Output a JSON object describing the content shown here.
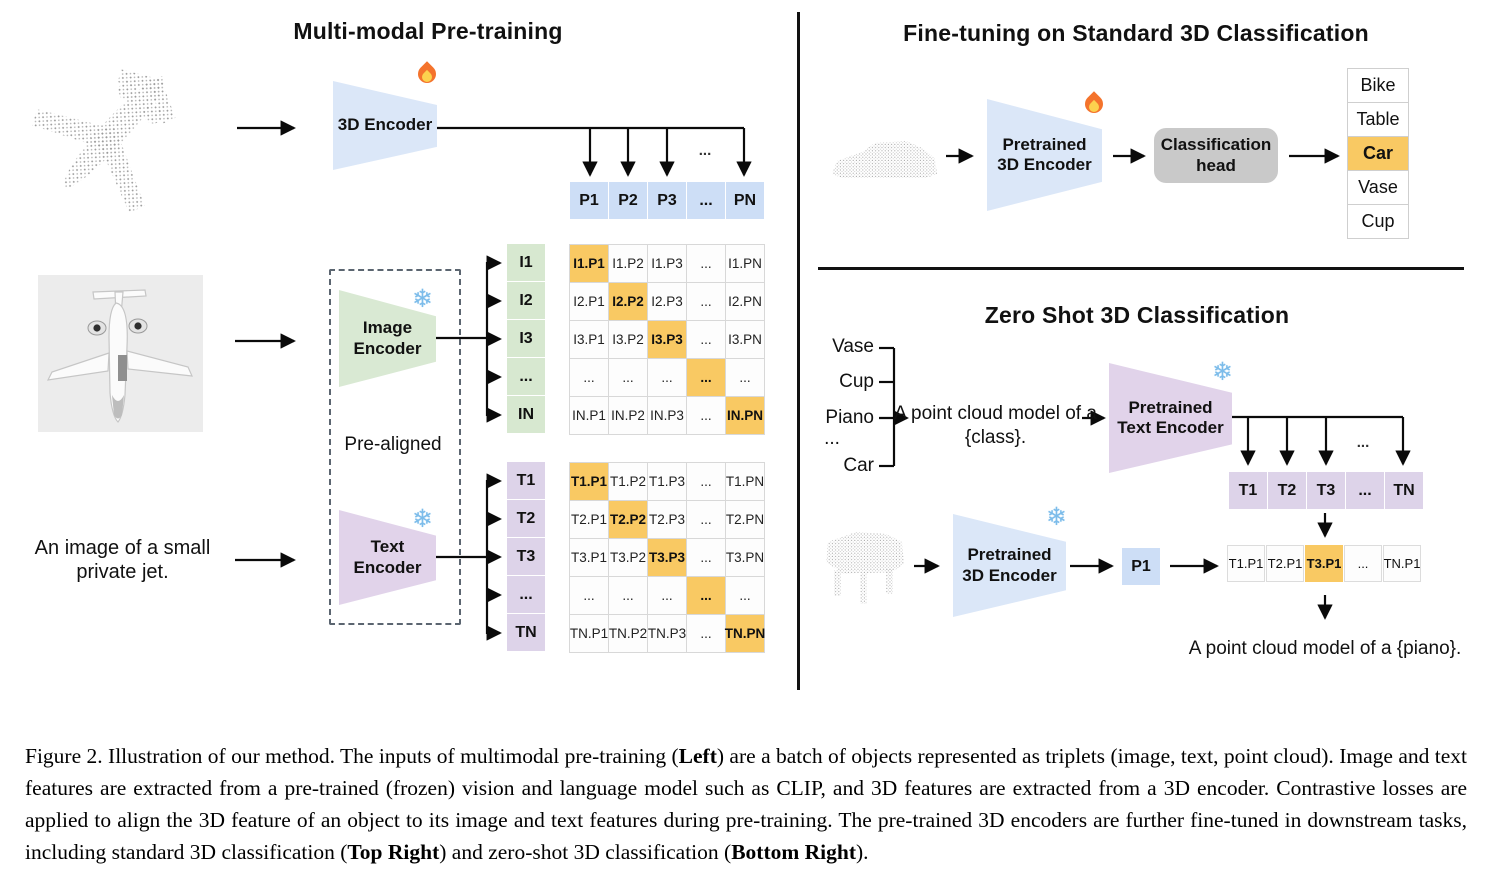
{
  "ellipsis": "...",
  "icons": {
    "snowflake": "❄"
  },
  "colors": {
    "blue": "#dbe7f8",
    "blue_cell": "#cddef6",
    "green": "#d9e9d3",
    "green_cell": "#d7e8d0",
    "purple": "#e1d3ea",
    "purple_cell": "#ddd3e9",
    "orange": "#f9c963",
    "gray_head": "#c9c9c9"
  },
  "left": {
    "title": "Multi-modal Pre-training",
    "encoder_3d": "3D Encoder",
    "image_encoder": "Image Encoder",
    "text_encoder": "Text Encoder",
    "prealigned": "Pre-aligned",
    "image_caption": "An image of a small private jet.",
    "p_row": [
      "P1",
      "P2",
      "P3",
      "...",
      "PN"
    ],
    "i_labels": [
      "I1",
      "I2",
      "I3",
      "...",
      "IN"
    ],
    "t_labels": [
      "T1",
      "T2",
      "T3",
      "...",
      "TN"
    ],
    "i_matrix": [
      [
        "I1.P1",
        "I1.P2",
        "I1.P3",
        "...",
        "I1.PN"
      ],
      [
        "I2.P1",
        "I2.P2",
        "I2.P3",
        "...",
        "I2.PN"
      ],
      [
        "I3.P1",
        "I3.P2",
        "I3.P3",
        "...",
        "I3.PN"
      ],
      [
        "...",
        "...",
        "...",
        "...",
        "..."
      ],
      [
        "IN.P1",
        "IN.P2",
        "IN.P3",
        "...",
        "IN.PN"
      ]
    ],
    "t_matrix": [
      [
        "T1.P1",
        "T1.P2",
        "T1.P3",
        "...",
        "T1.PN"
      ],
      [
        "T2.P1",
        "T2.P2",
        "T2.P3",
        "...",
        "T2.PN"
      ],
      [
        "T3.P1",
        "T3.P2",
        "T3.P3",
        "...",
        "T3.PN"
      ],
      [
        "...",
        "...",
        "...",
        "...",
        "..."
      ],
      [
        "TN.P1",
        "TN.P2",
        "TN.P3",
        "...",
        "TN.PN"
      ]
    ]
  },
  "top_right": {
    "title": "Fine-tuning on Standard 3D Classification",
    "encoder": "Pretrained 3D Encoder",
    "head": "Classification head",
    "classes": [
      "Bike",
      "Table",
      "Car",
      "Vase",
      "Cup"
    ],
    "highlight_index": 2
  },
  "bottom_right": {
    "title": "Zero Shot 3D Classification",
    "class_list": [
      "Vase",
      "Cup",
      "Piano",
      "...",
      "Car"
    ],
    "prompt": "A point cloud model of a {class}.",
    "text_encoder": "Pretrained Text Encoder",
    "encoder_3d": "Pretrained 3D Encoder",
    "p1": "P1",
    "t_row": [
      "T1",
      "T2",
      "T3",
      "...",
      "TN"
    ],
    "sim_row": [
      "T1.P1",
      "T2.P1",
      "T3.P1",
      "...",
      "TN.P1"
    ],
    "sim_highlight_index": 2,
    "result": "A point cloud model of a {piano}."
  },
  "caption": {
    "s0": "Figure 2. Illustration of our method. The inputs of multimodal pre-training (",
    "s1": "Left",
    "s2": ") are a batch of objects represented as triplets (image, text, point cloud). Image and text features are extracted from a pre-trained (frozen) vision and language model such as CLIP, and 3D features are extracted from a 3D encoder. Contrastive losses are applied to align the 3D feature of an object to its image and text features during pre-training. The pre-trained 3D encoders are further fine-tuned in downstream tasks, including standard 3D classification (",
    "s3": "Top Right",
    "s4": ") and zero-shot 3D classification (",
    "s5": "Bottom Right",
    "s6": ")."
  }
}
